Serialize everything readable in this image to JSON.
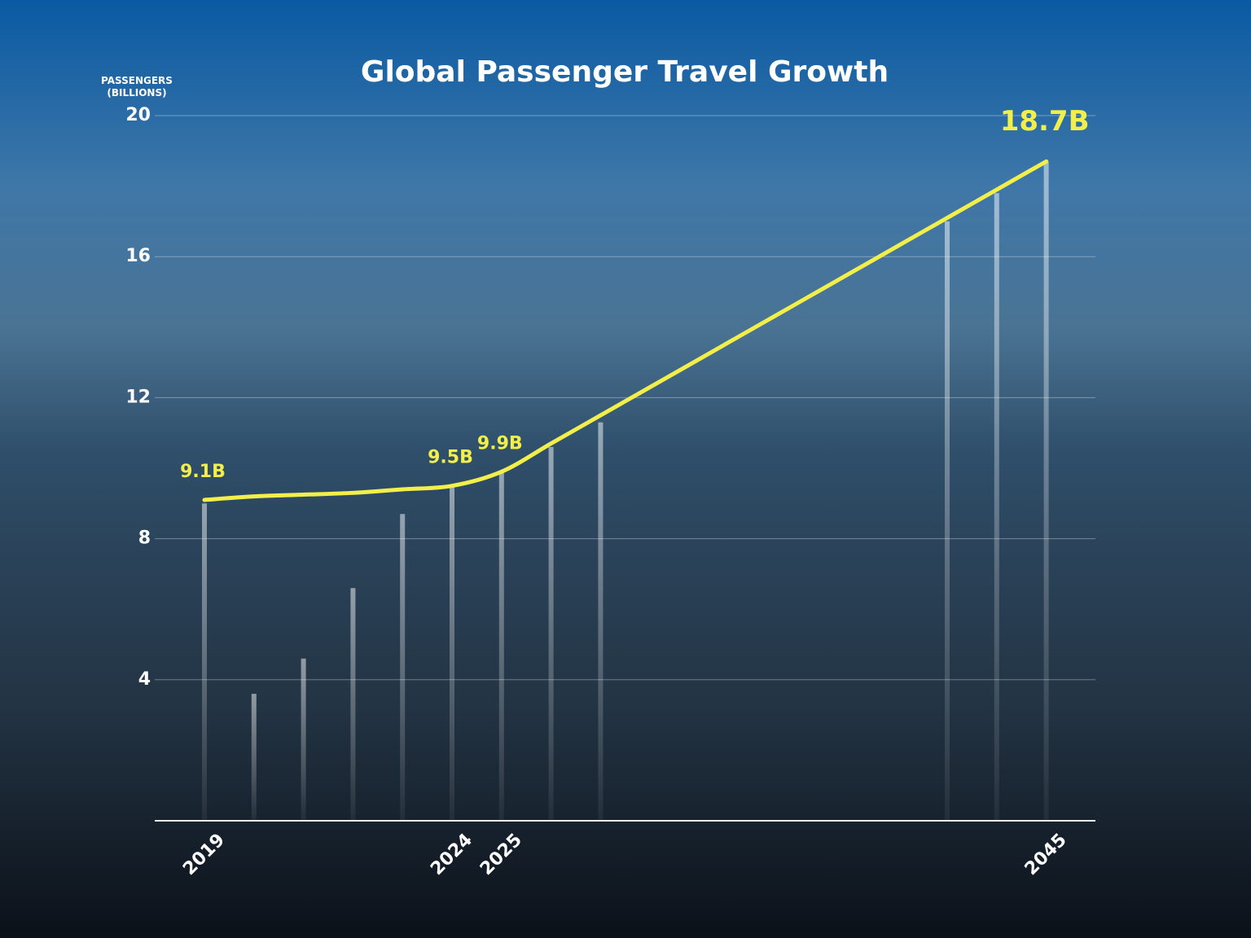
{
  "chart_data": {
    "type": "line",
    "title": "Global Passenger Travel Growth",
    "y_label": "PASSENGERS (BILLIONS)",
    "categories": [
      "2019",
      null,
      null,
      null,
      null,
      "2024",
      "2025",
      null,
      null,
      null,
      null,
      null,
      null,
      null,
      null,
      null,
      null,
      "2045"
    ],
    "series": [
      {
        "type": "bar",
        "color": "#ffffff",
        "values": [
          9.0,
          3.6,
          4.6,
          6.6,
          8.7,
          9.5,
          9.9,
          10.6,
          11.3,
          null,
          null,
          null,
          null,
          null,
          null,
          17.0,
          17.8,
          18.7
        ]
      },
      {
        "type": "line",
        "color": "#f2ee4a",
        "values": [
          9.1,
          9.2,
          9.25,
          9.3,
          9.4,
          9.5,
          9.9,
          10.7,
          11.5,
          12.3,
          13.1,
          13.9,
          14.7,
          15.5,
          16.3,
          17.1,
          17.9,
          18.7
        ],
        "value_labels": [
          "9.1B",
          null,
          null,
          null,
          null,
          "9.5B",
          "9.9B",
          null,
          null,
          null,
          null,
          null,
          null,
          null,
          null,
          null,
          null,
          "18.7B"
        ]
      }
    ],
    "ylim": [
      0,
      20
    ],
    "yticks": [
      4,
      8,
      12,
      16,
      20
    ],
    "grid": true
  }
}
